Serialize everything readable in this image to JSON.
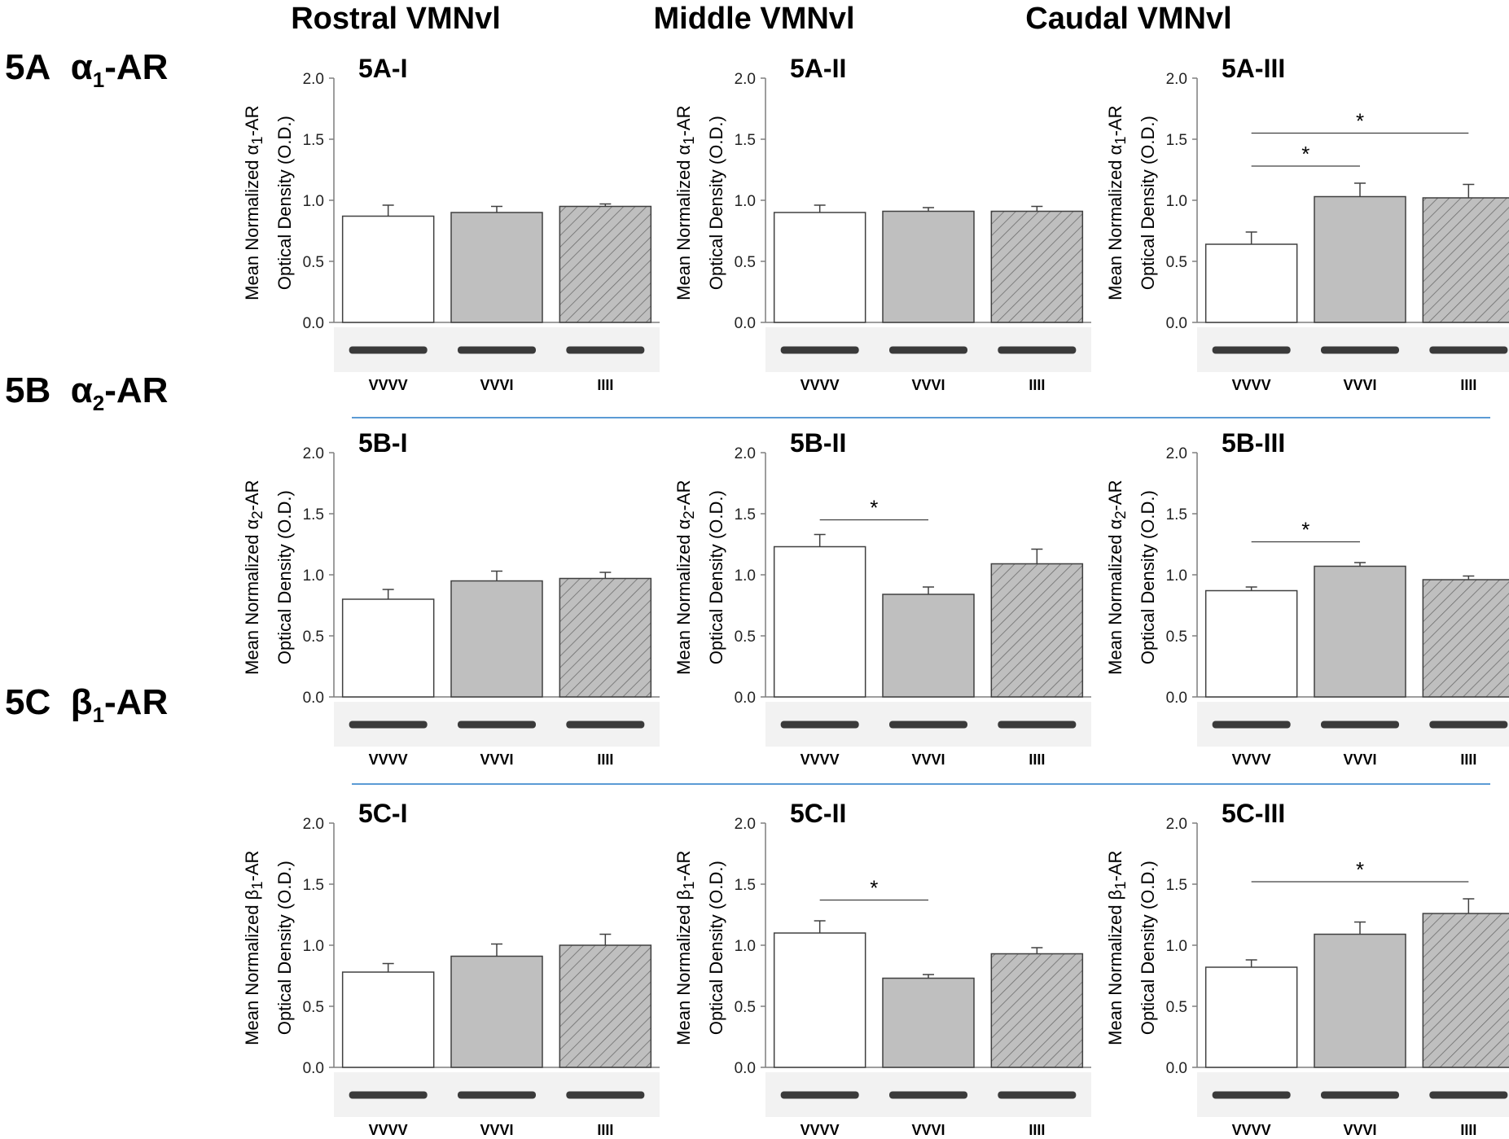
{
  "columns": [
    "Rostral VMNvl",
    "Middle VMNvl",
    "Caudal VMNvl"
  ],
  "rows": [
    {
      "prefix": "5A",
      "greek": "α",
      "sub": "1",
      "suffix": "-AR"
    },
    {
      "prefix": "5B",
      "greek": "α",
      "sub": "2",
      "suffix": "-AR"
    },
    {
      "prefix": "5C",
      "greek": "β",
      "sub": "1",
      "suffix": "-AR"
    }
  ],
  "colors": {
    "vvvv": "#ffffff",
    "vvvi": "#bfbfbf",
    "iiii": "#bfbfbf",
    "axis": "#7f7f7f",
    "divider": "#5b9bd5"
  },
  "chart_data": [
    {
      "id": "5A-I",
      "type": "bar",
      "title": "5A-I",
      "ylabel_pre": "Mean Normalized ",
      "ylabel_greek": "α",
      "ylabel_sub": "1",
      "ylabel_post": "-AR",
      "ylabel2": "Optical Density (O.D.)",
      "categories": [
        "VVVV",
        "VVVI",
        "IIII"
      ],
      "values": [
        0.87,
        0.9,
        0.95
      ],
      "errors": [
        0.09,
        0.05,
        0.02
      ],
      "ylim": [
        0,
        2.0
      ],
      "yticks": [
        "0.0",
        "0.5",
        "1.0",
        "1.5",
        "2.0"
      ],
      "significance": []
    },
    {
      "id": "5A-II",
      "type": "bar",
      "title": "5A-II",
      "ylabel_pre": "Mean Normalized ",
      "ylabel_greek": "α",
      "ylabel_sub": "1",
      "ylabel_post": "-AR",
      "ylabel2": "Optical Density (O.D.)",
      "categories": [
        "VVVV",
        "VVVI",
        "IIII"
      ],
      "values": [
        0.9,
        0.91,
        0.91
      ],
      "errors": [
        0.06,
        0.03,
        0.04
      ],
      "ylim": [
        0,
        2.0
      ],
      "yticks": [
        "0.0",
        "0.5",
        "1.0",
        "1.5",
        "2.0"
      ],
      "significance": []
    },
    {
      "id": "5A-III",
      "type": "bar",
      "title": "5A-III",
      "ylabel_pre": "Mean Normalized ",
      "ylabel_greek": "α",
      "ylabel_sub": "1",
      "ylabel_post": "-AR",
      "ylabel2": "Optical Density (O.D.)",
      "categories": [
        "VVVV",
        "VVVI",
        "IIII"
      ],
      "values": [
        0.64,
        1.03,
        1.02
      ],
      "errors": [
        0.1,
        0.11,
        0.11
      ],
      "ylim": [
        0,
        2.0
      ],
      "yticks": [
        "0.0",
        "0.5",
        "1.0",
        "1.5",
        "2.0"
      ],
      "significance": [
        {
          "from": 0,
          "to": 1,
          "y": 1.28,
          "label": "*"
        },
        {
          "from": 0,
          "to": 2,
          "y": 1.55,
          "label": "*"
        }
      ]
    },
    {
      "id": "5B-I",
      "type": "bar",
      "title": "5B-I",
      "ylabel_pre": "Mean Normalized ",
      "ylabel_greek": "α",
      "ylabel_sub": "2",
      "ylabel_post": "-AR",
      "ylabel2": "Optical Density (O.D.)",
      "categories": [
        "VVVV",
        "VVVI",
        "IIII"
      ],
      "values": [
        0.8,
        0.95,
        0.97
      ],
      "errors": [
        0.08,
        0.08,
        0.05
      ],
      "ylim": [
        0,
        2.0
      ],
      "yticks": [
        "0.0",
        "0.5",
        "1.0",
        "1.5",
        "2.0"
      ],
      "significance": []
    },
    {
      "id": "5B-II",
      "type": "bar",
      "title": "5B-II",
      "ylabel_pre": "Mean Normalized ",
      "ylabel_greek": "α",
      "ylabel_sub": "2",
      "ylabel_post": "-AR",
      "ylabel2": "Optical Density (O.D.)",
      "categories": [
        "VVVV",
        "VVVI",
        "IIII"
      ],
      "values": [
        1.23,
        0.84,
        1.09
      ],
      "errors": [
        0.1,
        0.06,
        0.12
      ],
      "ylim": [
        0,
        2.0
      ],
      "yticks": [
        "0.0",
        "0.5",
        "1.0",
        "1.5",
        "2.0"
      ],
      "significance": [
        {
          "from": 0,
          "to": 1,
          "y": 1.45,
          "label": "*"
        }
      ]
    },
    {
      "id": "5B-III",
      "type": "bar",
      "title": "5B-III",
      "ylabel_pre": "Mean Normalized ",
      "ylabel_greek": "α",
      "ylabel_sub": "2",
      "ylabel_post": "-AR",
      "ylabel2": "Optical Density (O.D.)",
      "categories": [
        "VVVV",
        "VVVI",
        "IIII"
      ],
      "values": [
        0.87,
        1.07,
        0.96
      ],
      "errors": [
        0.03,
        0.03,
        0.03
      ],
      "ylim": [
        0,
        2.0
      ],
      "yticks": [
        "0.0",
        "0.5",
        "1.0",
        "1.5",
        "2.0"
      ],
      "significance": [
        {
          "from": 0,
          "to": 1,
          "y": 1.27,
          "label": "*"
        }
      ]
    },
    {
      "id": "5C-I",
      "type": "bar",
      "title": "5C-I",
      "ylabel_pre": "Mean Normalized ",
      "ylabel_greek": "β",
      "ylabel_sub": "1",
      "ylabel_post": "-AR",
      "ylabel2": "Optical Density (O.D.)",
      "categories": [
        "VVVV",
        "VVVI",
        "IIII"
      ],
      "values": [
        0.78,
        0.91,
        1.0
      ],
      "errors": [
        0.07,
        0.1,
        0.09
      ],
      "ylim": [
        0,
        2.0
      ],
      "yticks": [
        "0.0",
        "0.5",
        "1.0",
        "1.5",
        "2.0"
      ],
      "significance": []
    },
    {
      "id": "5C-II",
      "type": "bar",
      "title": "5C-II",
      "ylabel_pre": "Mean Normalized ",
      "ylabel_greek": "β",
      "ylabel_sub": "1",
      "ylabel_post": "-AR",
      "ylabel2": "Optical Density (O.D.)",
      "categories": [
        "VVVV",
        "VVVI",
        "IIII"
      ],
      "values": [
        1.1,
        0.73,
        0.93
      ],
      "errors": [
        0.1,
        0.03,
        0.05
      ],
      "ylim": [
        0,
        2.0
      ],
      "yticks": [
        "0.0",
        "0.5",
        "1.0",
        "1.5",
        "2.0"
      ],
      "significance": [
        {
          "from": 0,
          "to": 1,
          "y": 1.37,
          "label": "*"
        }
      ]
    },
    {
      "id": "5C-III",
      "type": "bar",
      "title": "5C-III",
      "ylabel_pre": "Mean Normalized ",
      "ylabel_greek": "β",
      "ylabel_sub": "1",
      "ylabel_post": "-AR",
      "ylabel2": "Optical Density (O.D.)",
      "categories": [
        "VVVV",
        "VVVI",
        "IIII"
      ],
      "values": [
        0.82,
        1.09,
        1.26
      ],
      "errors": [
        0.06,
        0.1,
        0.12
      ],
      "ylim": [
        0,
        2.0
      ],
      "yticks": [
        "0.0",
        "0.5",
        "1.0",
        "1.5",
        "2.0"
      ],
      "significance": [
        {
          "from": 0,
          "to": 2,
          "y": 1.52,
          "label": "*"
        }
      ]
    }
  ]
}
